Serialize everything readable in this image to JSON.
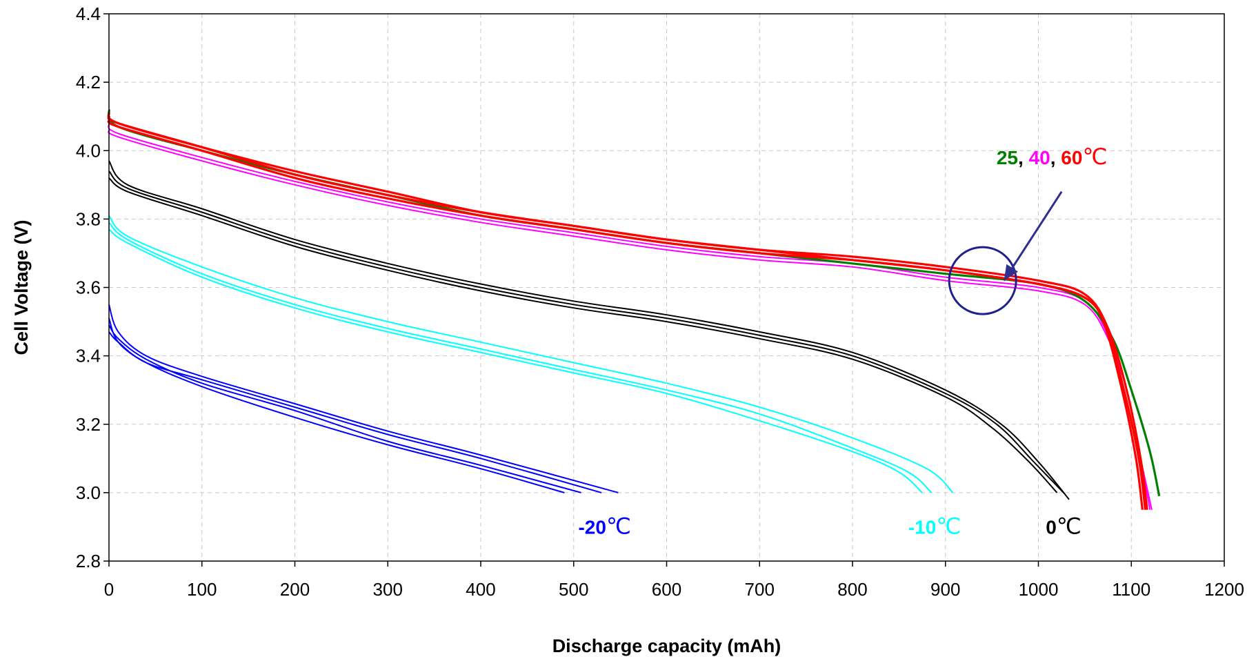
{
  "chart_data": {
    "type": "line",
    "title": "",
    "xlabel": "Discharge capacity (mAh)",
    "ylabel": "Cell Voltage (V)",
    "xlim": [
      0,
      1200
    ],
    "ylim": [
      2.8,
      4.4
    ],
    "xticks": [
      0,
      100,
      200,
      300,
      400,
      500,
      600,
      700,
      800,
      900,
      1000,
      1100,
      1200
    ],
    "yticks": [
      2.8,
      3.0,
      3.2,
      3.4,
      3.6,
      3.8,
      4.0,
      4.2,
      4.4
    ],
    "xtick_labels": [
      "0",
      "100",
      "200",
      "300",
      "400",
      "500",
      "600",
      "700",
      "800",
      "900",
      "1000",
      "1100",
      "1200"
    ],
    "ytick_labels": [
      "2.8",
      "3.0",
      "3.2",
      "3.4",
      "3.6",
      "3.8",
      "4.0",
      "4.2",
      "4.4"
    ],
    "grid": true,
    "legend": "none",
    "series": [
      {
        "group": "-20",
        "color": "#0000ff",
        "x": [
          0,
          10,
          40,
          100,
          200,
          300,
          400,
          490
        ],
        "y": [
          3.51,
          3.44,
          3.38,
          3.31,
          3.22,
          3.14,
          3.07,
          3.0
        ]
      },
      {
        "group": "-20",
        "color": "#0000ff",
        "x": [
          0,
          10,
          40,
          100,
          200,
          300,
          400,
          508
        ],
        "y": [
          3.49,
          3.45,
          3.39,
          3.32,
          3.24,
          3.15,
          3.08,
          3.0
        ]
      },
      {
        "group": "-20",
        "color": "#0000ff",
        "x": [
          0,
          10,
          40,
          100,
          200,
          300,
          400,
          530
        ],
        "y": [
          3.47,
          3.44,
          3.38,
          3.33,
          3.25,
          3.17,
          3.1,
          3.0
        ]
      },
      {
        "group": "-20",
        "color": "#0000ff",
        "x": [
          0,
          10,
          40,
          100,
          200,
          300,
          400,
          548
        ],
        "y": [
          3.55,
          3.47,
          3.4,
          3.34,
          3.26,
          3.18,
          3.11,
          3.0
        ]
      },
      {
        "group": "-10",
        "color": "#00ffff",
        "x": [
          0,
          20,
          100,
          200,
          300,
          400,
          500,
          600,
          700,
          800,
          850,
          875
        ],
        "y": [
          3.77,
          3.73,
          3.63,
          3.54,
          3.47,
          3.41,
          3.35,
          3.29,
          3.21,
          3.12,
          3.06,
          3.0
        ]
      },
      {
        "group": "-10",
        "color": "#00ffff",
        "x": [
          0,
          20,
          100,
          200,
          300,
          400,
          500,
          600,
          700,
          800,
          860,
          885
        ],
        "y": [
          3.79,
          3.74,
          3.64,
          3.55,
          3.48,
          3.42,
          3.36,
          3.3,
          3.23,
          3.13,
          3.06,
          3.0
        ]
      },
      {
        "group": "-10",
        "color": "#00ffff",
        "x": [
          0,
          20,
          100,
          200,
          300,
          400,
          500,
          600,
          700,
          800,
          880,
          908
        ],
        "y": [
          3.81,
          3.75,
          3.66,
          3.57,
          3.5,
          3.44,
          3.38,
          3.32,
          3.25,
          3.16,
          3.07,
          3.0
        ]
      },
      {
        "group": "0",
        "color": "#000000",
        "x": [
          0,
          20,
          100,
          200,
          300,
          400,
          500,
          600,
          700,
          800,
          900,
          950,
          990,
          1020
        ],
        "y": [
          3.92,
          3.88,
          3.81,
          3.72,
          3.65,
          3.59,
          3.54,
          3.5,
          3.45,
          3.39,
          3.28,
          3.19,
          3.09,
          3.0
        ]
      },
      {
        "group": "0",
        "color": "#000000",
        "x": [
          0,
          20,
          100,
          200,
          300,
          400,
          500,
          600,
          700,
          800,
          900,
          955,
          995,
          1027
        ],
        "y": [
          3.94,
          3.89,
          3.82,
          3.73,
          3.66,
          3.6,
          3.55,
          3.51,
          3.46,
          3.4,
          3.29,
          3.2,
          3.09,
          3.0
        ]
      },
      {
        "group": "0",
        "color": "#000000",
        "x": [
          0,
          20,
          100,
          200,
          300,
          400,
          500,
          600,
          700,
          800,
          900,
          960,
          1000,
          1033
        ],
        "y": [
          3.97,
          3.9,
          3.83,
          3.74,
          3.67,
          3.61,
          3.56,
          3.52,
          3.47,
          3.41,
          3.3,
          3.2,
          3.09,
          2.98
        ]
      },
      {
        "group": "25",
        "color": "#008000",
        "x": [
          0,
          10,
          100,
          200,
          300,
          400,
          500,
          600,
          700,
          800,
          900,
          1000,
          1050,
          1080,
          1100,
          1120,
          1130
        ],
        "y": [
          4.12,
          4.07,
          4.0,
          3.93,
          3.87,
          3.81,
          3.77,
          3.73,
          3.7,
          3.67,
          3.64,
          3.61,
          3.56,
          3.45,
          3.3,
          3.12,
          2.99
        ]
      },
      {
        "group": "40",
        "color": "#ff00ff",
        "x": [
          0,
          10,
          100,
          200,
          300,
          400,
          500,
          600,
          700,
          800,
          900,
          1000,
          1050,
          1075,
          1095,
          1110,
          1122
        ],
        "y": [
          4.06,
          4.04,
          3.97,
          3.9,
          3.84,
          3.79,
          3.75,
          3.71,
          3.68,
          3.66,
          3.62,
          3.59,
          3.55,
          3.45,
          3.3,
          3.1,
          2.95
        ]
      },
      {
        "group": "40",
        "color": "#ff00ff",
        "x": [
          0,
          10,
          100,
          200,
          300,
          400,
          500,
          600,
          700,
          800,
          900,
          1000,
          1050,
          1075,
          1095,
          1110,
          1120
        ],
        "y": [
          4.08,
          4.05,
          3.98,
          3.91,
          3.85,
          3.8,
          3.76,
          3.72,
          3.69,
          3.67,
          3.63,
          3.6,
          3.56,
          3.46,
          3.3,
          3.1,
          2.95
        ]
      },
      {
        "group": "60",
        "color": "#ff0000",
        "x": [
          0,
          10,
          100,
          200,
          300,
          400,
          500,
          600,
          700,
          800,
          900,
          1000,
          1050,
          1070,
          1090,
          1105,
          1112
        ],
        "y": [
          4.09,
          4.07,
          4.0,
          3.92,
          3.86,
          3.81,
          3.77,
          3.73,
          3.7,
          3.68,
          3.65,
          3.61,
          3.57,
          3.5,
          3.3,
          3.1,
          2.95
        ]
      },
      {
        "group": "60",
        "color": "#ff0000",
        "x": [
          0,
          10,
          100,
          200,
          300,
          400,
          500,
          600,
          700,
          800,
          900,
          1000,
          1050,
          1072,
          1092,
          1108,
          1115
        ],
        "y": [
          4.1,
          4.08,
          4.01,
          3.93,
          3.87,
          3.82,
          3.78,
          3.74,
          3.71,
          3.68,
          3.65,
          3.61,
          3.57,
          3.49,
          3.3,
          3.1,
          2.95
        ]
      },
      {
        "group": "60",
        "color": "#ff0000",
        "x": [
          0,
          10,
          100,
          200,
          300,
          400,
          500,
          600,
          700,
          800,
          900,
          1000,
          1050,
          1075,
          1095,
          1110,
          1117
        ],
        "y": [
          4.11,
          4.08,
          4.01,
          3.94,
          3.88,
          3.82,
          3.78,
          3.74,
          3.71,
          3.69,
          3.66,
          3.62,
          3.58,
          3.48,
          3.3,
          3.1,
          2.95
        ]
      }
    ],
    "annotations": {
      "minus20": {
        "text": "-20",
        "unit": "℃",
        "color": "#0000ff",
        "x": 505,
        "y": 2.88
      },
      "minus10": {
        "text": "-10",
        "unit": "℃",
        "color": "#00ffff",
        "x": 860,
        "y": 2.88
      },
      "zero": {
        "text": "0",
        "unit": "℃",
        "color": "#000000",
        "x": 1008,
        "y": 2.88
      },
      "high_temps": {
        "parts": [
          {
            "text": "25",
            "color": "#008000"
          },
          {
            "text": ", ",
            "color": "#000000"
          },
          {
            "text": "40",
            "color": "#ff00ff"
          },
          {
            "text": ", ",
            "color": "#000000"
          },
          {
            "text": "60",
            "color": "#ff0000"
          },
          {
            "text": "℃",
            "color": "#ff0000"
          }
        ],
        "x": 955,
        "y": 3.96
      },
      "circle": {
        "x": 940,
        "y": 3.62,
        "r_data_x": 36,
        "color": "#1f1f8f"
      },
      "arrow": {
        "from_x": 1025,
        "from_y": 3.88,
        "to_x": 963,
        "to_y": 3.62,
        "color": "#2f2f8f"
      }
    }
  }
}
